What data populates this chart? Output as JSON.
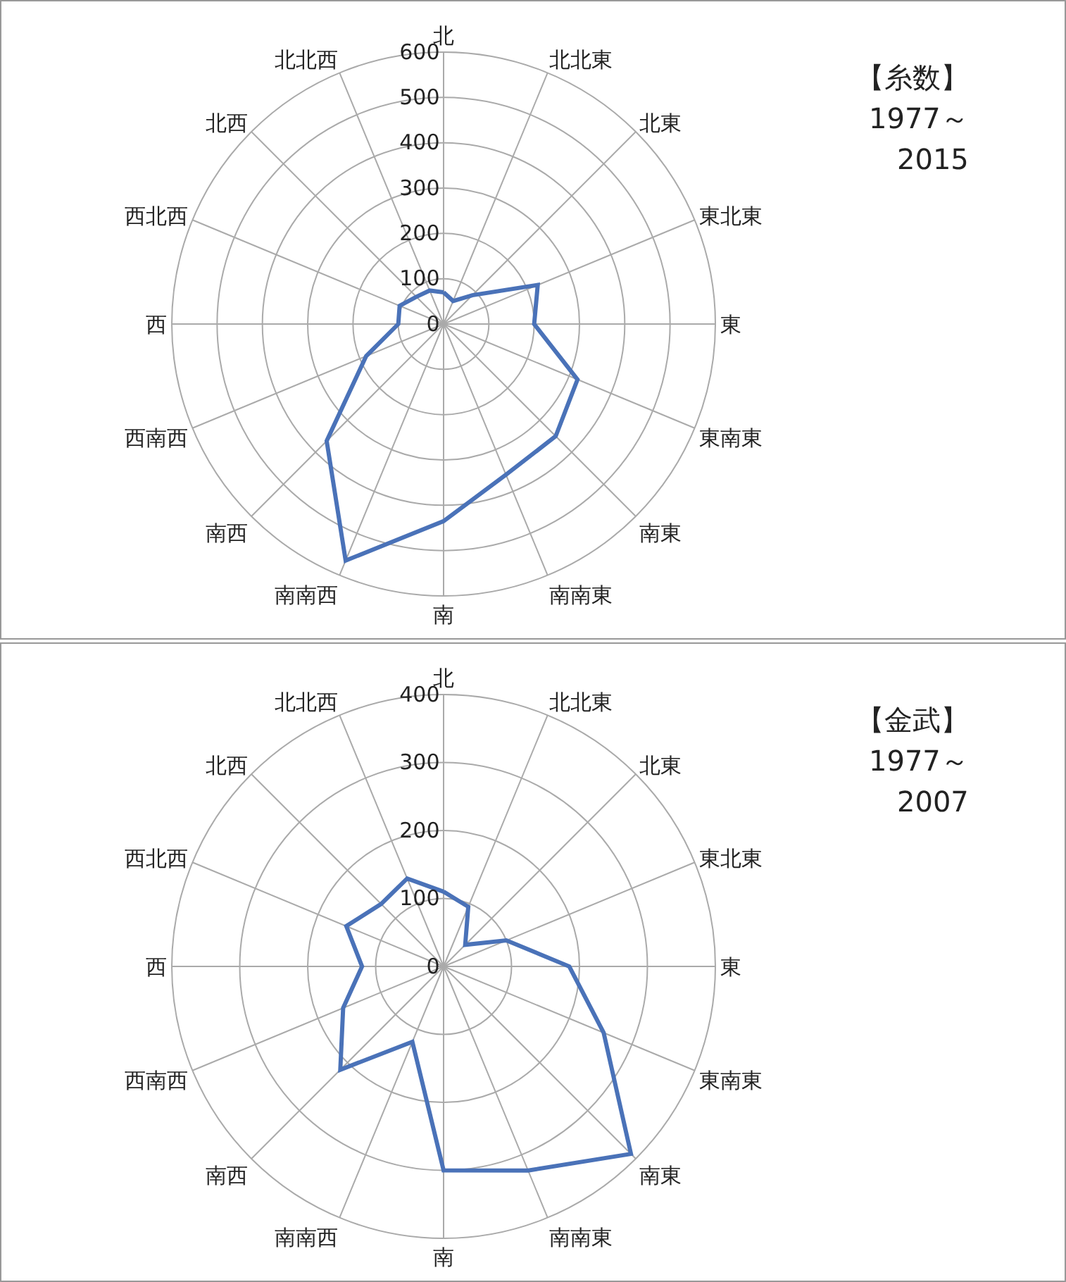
{
  "chart_data": [
    {
      "type": "radar",
      "annotations": [
        "【糸数】",
        "1977～",
        "2015"
      ],
      "categories": [
        "北",
        "北北東",
        "北東",
        "東北東",
        "東",
        "東南東",
        "南東",
        "南南東",
        "南",
        "南南西",
        "南西",
        "西南西",
        "西",
        "西北西",
        "北西",
        "北北西"
      ],
      "series": [
        {
          "color": "#4a72b8",
          "values": [
            70,
            55,
            90,
            225,
            200,
            320,
            350,
            360,
            435,
            565,
            365,
            185,
            100,
            105,
            85,
            80
          ]
        }
      ],
      "ylim": [
        0,
        600
      ],
      "yticks": [
        0,
        100,
        200,
        300,
        400,
        500,
        600
      ],
      "grid": true
    },
    {
      "type": "radar",
      "annotations": [
        "【金武】",
        "1977～",
        "2007"
      ],
      "categories": [
        "北",
        "北北東",
        "北東",
        "東北東",
        "東",
        "東南東",
        "南東",
        "南南東",
        "南",
        "南南西",
        "南西",
        "西南西",
        "西",
        "西北西",
        "北西",
        "北北西"
      ],
      "series": [
        {
          "color": "#4a72b8",
          "values": [
            110,
            95,
            45,
            100,
            185,
            255,
            390,
            325,
            300,
            120,
            215,
            160,
            120,
            155,
            130,
            140
          ]
        }
      ],
      "ylim": [
        0,
        400
      ],
      "yticks": [
        0,
        100,
        200,
        300,
        400
      ],
      "grid": true
    }
  ]
}
